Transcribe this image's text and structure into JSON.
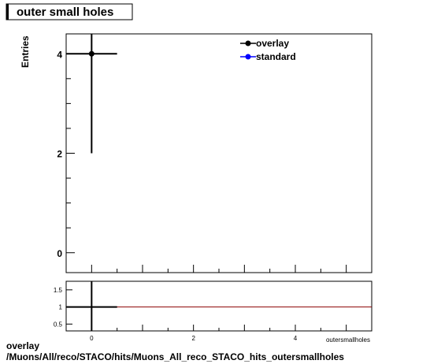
{
  "title": "outer small holes",
  "footer": {
    "line1": "overlay",
    "line2": "/Muons/All/reco/STACO/hits/Muons_All_reco_STACO_hits_outersmallholes"
  },
  "chart_data": [
    {
      "type": "scatter",
      "title": "outer small holes",
      "ylabel": "Entries",
      "xlabel": "outersmallholes",
      "xlim": [
        -0.5,
        5.5
      ],
      "ylim": [
        -0.4,
        4.4
      ],
      "yticks": [
        0,
        2,
        4
      ],
      "xticks": [
        0,
        2,
        4
      ],
      "legend_position": "top-right",
      "series": [
        {
          "name": "overlay",
          "color": "#000000",
          "points": [
            {
              "x": 0,
              "y": 4,
              "xerr": 0.5,
              "yerr": 2
            }
          ]
        },
        {
          "name": "standard",
          "color": "#0000ff",
          "points": []
        }
      ]
    },
    {
      "type": "line",
      "title": "",
      "ylim": [
        0.3,
        1.75
      ],
      "yticks": [
        "0.5",
        "1",
        "1.5"
      ],
      "xticks": [
        "0",
        "2",
        "4"
      ],
      "reference_line": {
        "y": 1,
        "color": "#8b0000"
      },
      "series": [
        {
          "name": "",
          "color": "#000000",
          "points": [
            {
              "x": 0,
              "y": 1,
              "xerr": 0.5
            }
          ]
        }
      ]
    }
  ]
}
